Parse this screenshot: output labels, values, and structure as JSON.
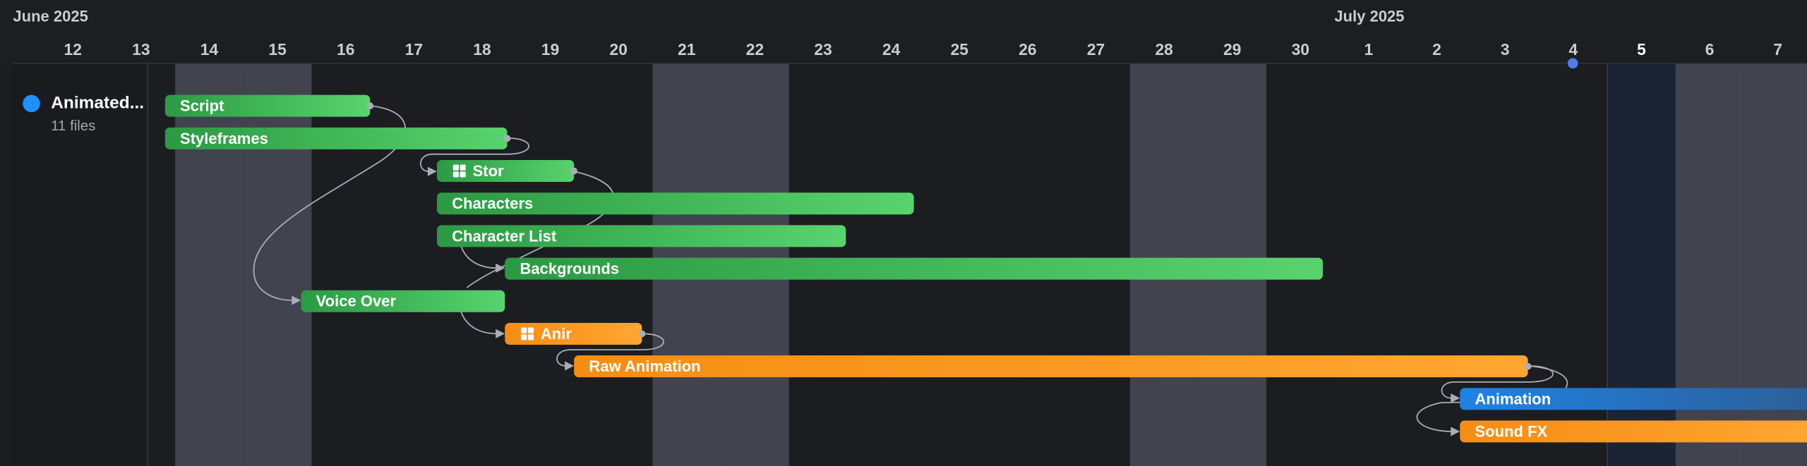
{
  "header": {
    "months": [
      "June 2025",
      "July 2025"
    ],
    "days": [
      "12",
      "13",
      "14",
      "15",
      "16",
      "17",
      "18",
      "19",
      "20",
      "21",
      "22",
      "23",
      "24",
      "25",
      "26",
      "27",
      "28",
      "29",
      "30",
      "1",
      "2",
      "3",
      "4",
      "5",
      "6",
      "7"
    ]
  },
  "project": {
    "name": "Animated...",
    "files": "11 files"
  },
  "tasks": [
    "Script",
    "Styleframes",
    "Stor",
    "Characters",
    "Character List",
    "Backgrounds",
    "Voice Over",
    "Anir",
    "Raw Animation",
    "Animation",
    "Sound FX"
  ]
}
